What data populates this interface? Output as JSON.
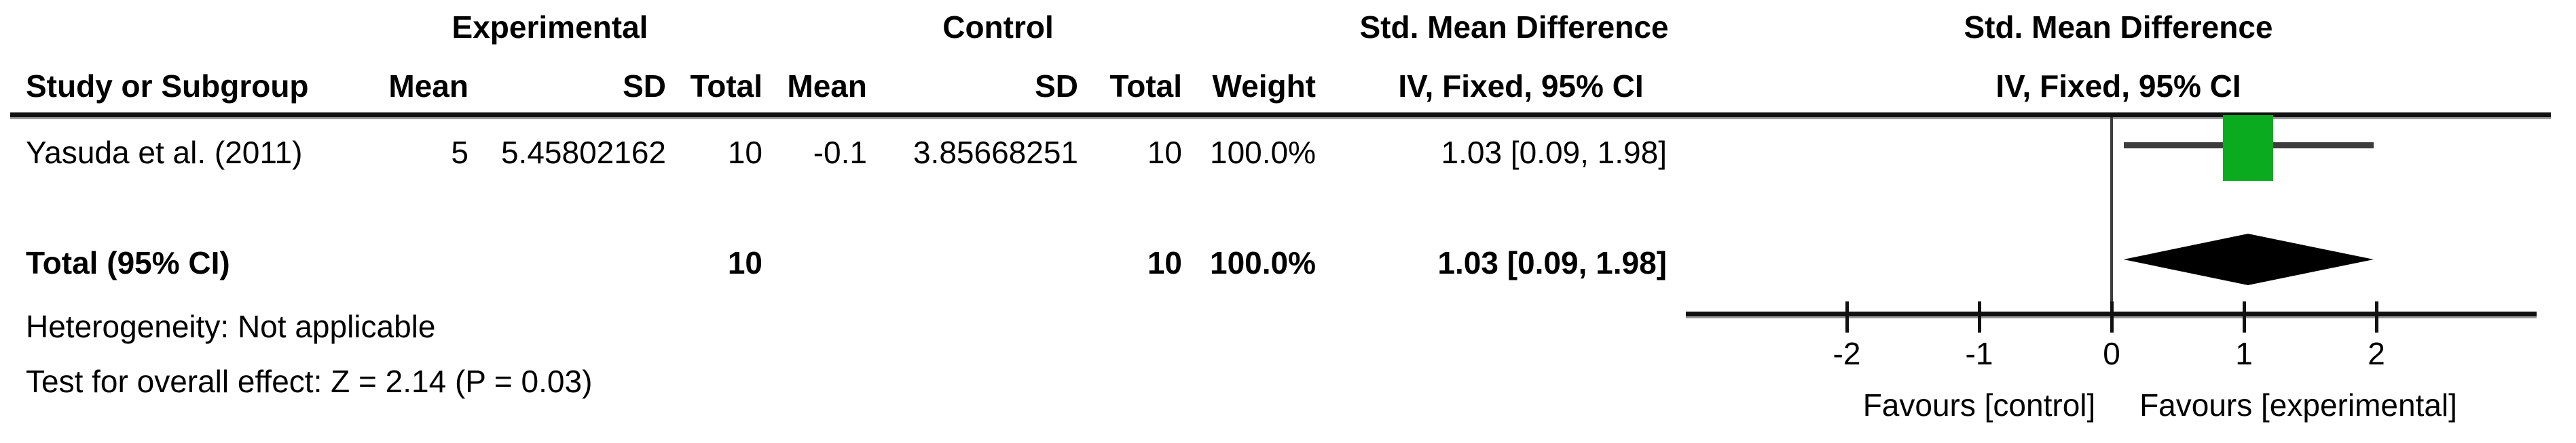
{
  "figure": {
    "table": {
      "group_headers": {
        "experimental": "Experimental",
        "control": "Control",
        "smd": "Std. Mean Difference"
      },
      "col_headers": {
        "study": "Study or Subgroup",
        "mean_exp": "Mean",
        "sd_exp": "SD",
        "total_exp": "Total",
        "mean_ctrl": "Mean",
        "sd_ctrl": "SD",
        "total_ctrl": "Total",
        "weight": "Weight",
        "ci": "IV, Fixed, 95% CI"
      },
      "rows": [
        {
          "study": "Yasuda et al. (2011)",
          "mean_exp": "5",
          "sd_exp": "5.45802162",
          "total_exp": "10",
          "mean_ctrl": "-0.1",
          "sd_ctrl": "3.85668251",
          "total_ctrl": "10",
          "weight": "100.0%",
          "effect": "1.03 [0.09, 1.98]"
        }
      ],
      "total_row": {
        "label": "Total (95% CI)",
        "total_exp": "10",
        "total_ctrl": "10",
        "weight": "100.0%",
        "effect": "1.03 [0.09, 1.98]"
      },
      "footnotes": {
        "heterogeneity": "Heterogeneity: Not applicable",
        "overall": "Test for overall effect: Z = 2.14 (P = 0.03)"
      }
    },
    "plot_header": {
      "line1": "Std. Mean Difference",
      "line2": "IV, Fixed, 95% CI"
    },
    "colors": {
      "square": "#0aab1e",
      "diamond": "#000000",
      "ci_line": "#3d3d3d",
      "axis": "#111111",
      "rule_shadow": "#9a9a9a"
    }
  },
  "chart_data": {
    "type": "forest",
    "effect_measure": "Std. Mean Difference",
    "model": "IV, Fixed, 95% CI",
    "axis": {
      "ticks": [
        -2,
        -1,
        0,
        1,
        2
      ],
      "favours_left": "Favours [control]",
      "favours_right": "Favours [experimental]"
    },
    "studies": [
      {
        "name": "Yasuda et al. (2011)",
        "mean_exp": 5,
        "sd_exp": 5.45802162,
        "n_exp": 10,
        "mean_ctrl": -0.1,
        "sd_ctrl": 3.85668251,
        "n_ctrl": 10,
        "weight_pct": 100.0,
        "smd": 1.03,
        "ci_low": 0.09,
        "ci_high": 1.98
      }
    ],
    "total": {
      "label": "Total (95% CI)",
      "n_exp": 10,
      "n_ctrl": 10,
      "weight_pct": 100.0,
      "smd": 1.03,
      "ci_low": 0.09,
      "ci_high": 1.98
    },
    "heterogeneity": "Not applicable",
    "overall_effect": {
      "z": 2.14,
      "p": 0.03
    }
  }
}
